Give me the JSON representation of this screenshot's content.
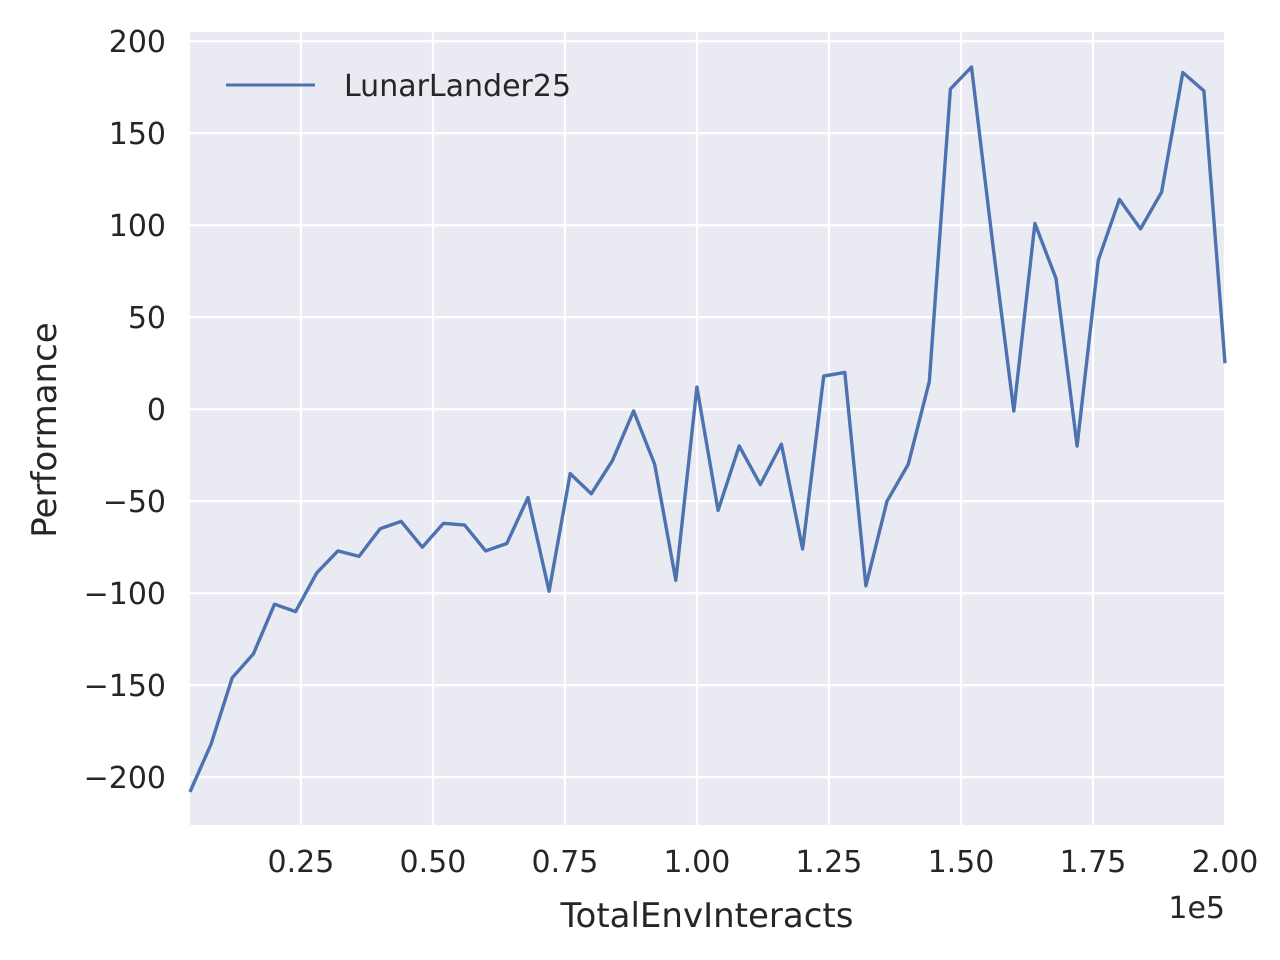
{
  "chart_data": {
    "type": "line",
    "title": "",
    "xlabel": "TotalEnvInteracts",
    "ylabel": "Performance",
    "x_offset_label": "1e5",
    "xlim": [
      0.04,
      2.0
    ],
    "ylim": [
      -226,
      205
    ],
    "xticks": [
      0.25,
      0.5,
      0.75,
      1.0,
      1.25,
      1.5,
      1.75,
      2.0
    ],
    "xtick_labels": [
      "0.25",
      "0.50",
      "0.75",
      "1.00",
      "1.25",
      "1.50",
      "1.75",
      "2.00"
    ],
    "yticks": [
      -200,
      -150,
      -100,
      -50,
      0,
      50,
      100,
      150,
      200
    ],
    "ytick_labels": [
      "−200",
      "−150",
      "−100",
      "−50",
      "0",
      "50",
      "100",
      "150",
      "200"
    ],
    "grid": true,
    "legend": {
      "position": "top-left"
    },
    "series": [
      {
        "name": "LunarLander25",
        "color": "#4c72b0",
        "x": [
          0.04,
          0.08,
          0.12,
          0.16,
          0.2,
          0.24,
          0.28,
          0.32,
          0.36,
          0.4,
          0.44,
          0.48,
          0.52,
          0.56,
          0.6,
          0.64,
          0.68,
          0.72,
          0.76,
          0.8,
          0.84,
          0.88,
          0.92,
          0.96,
          1.0,
          1.04,
          1.08,
          1.12,
          1.16,
          1.2,
          1.24,
          1.28,
          1.32,
          1.36,
          1.4,
          1.44,
          1.48,
          1.52,
          1.56,
          1.6,
          1.64,
          1.68,
          1.72,
          1.76,
          1.8,
          1.84,
          1.88,
          1.92,
          1.96,
          2.0
        ],
        "y": [
          -208,
          -182,
          -146,
          -133,
          -106,
          -110,
          -89,
          -77,
          -80,
          -65,
          -61,
          -75,
          -62,
          -63,
          -77,
          -73,
          -48,
          -99,
          -35,
          -46,
          -28,
          -1,
          -30,
          -93,
          12,
          -55,
          -20,
          -41,
          -19,
          -76,
          18,
          20,
          -96,
          -50,
          -30,
          15,
          174,
          186,
          90,
          -1,
          101,
          71,
          -20,
          81,
          114,
          98,
          118,
          183,
          173,
          25
        ]
      }
    ]
  }
}
